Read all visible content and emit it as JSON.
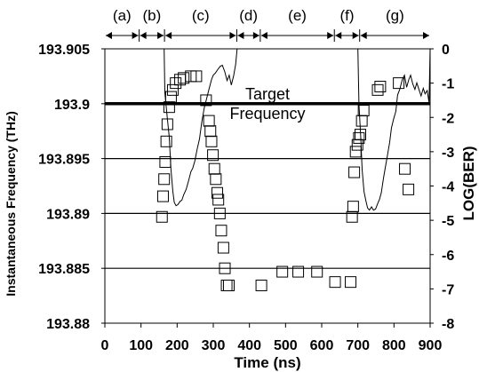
{
  "chart_data": {
    "type": "scatter",
    "xlabel": "Time (ns)",
    "ylabel_left": "Instantaneous Frequency (THz)",
    "ylabel_right": "LOG(BER)",
    "xlim": [
      0,
      900
    ],
    "ylim_left": [
      193.88,
      193.905
    ],
    "ylim_right": [
      -8,
      0
    ],
    "x_ticks": [
      "0",
      "100",
      "200",
      "300",
      "400",
      "500",
      "600",
      "700",
      "800",
      "900"
    ],
    "y_left_ticks": [
      "193.88",
      "193.885",
      "193.89",
      "193.895",
      "193.9",
      "193.905"
    ],
    "y_right_ticks": [
      "-8",
      "-7",
      "-6",
      "-5",
      "-4",
      "-3",
      "-2",
      "-1",
      "0"
    ],
    "gridlines_left": [
      193.885,
      193.89,
      193.895
    ],
    "target": {
      "value": 193.9,
      "label_line1": "Target",
      "label_line2": "Frequency"
    },
    "phases": [
      {
        "label": "(a)",
        "start": 0,
        "end": 95
      },
      {
        "label": "(b)",
        "start": 95,
        "end": 165
      },
      {
        "label": "(c)",
        "start": 165,
        "end": 365
      },
      {
        "label": "(d)",
        "start": 365,
        "end": 430
      },
      {
        "label": "(e)",
        "start": 430,
        "end": 635
      },
      {
        "label": "(f)",
        "start": 635,
        "end": 705
      },
      {
        "label": "(g)",
        "start": 705,
        "end": 900
      }
    ],
    "series": [
      {
        "axis": "left",
        "style": "line",
        "points": [
          [
            164,
            193.905
          ],
          [
            166,
            193.901
          ],
          [
            172,
            193.899
          ],
          [
            178,
            193.897
          ],
          [
            183,
            193.894
          ],
          [
            188,
            193.892
          ],
          [
            192,
            193.891
          ],
          [
            197,
            193.8907
          ],
          [
            202,
            193.8908
          ],
          [
            208,
            193.8911
          ],
          [
            213,
            193.8912
          ],
          [
            218,
            193.8917
          ],
          [
            225,
            193.8922
          ],
          [
            232,
            193.893
          ],
          [
            238,
            193.8938
          ],
          [
            243,
            193.8941
          ],
          [
            249,
            193.8948
          ],
          [
            255,
            193.8958
          ],
          [
            262,
            193.8968
          ],
          [
            268,
            193.8983
          ],
          [
            275,
            193.8996
          ],
          [
            281,
            193.9004
          ],
          [
            288,
            193.9013
          ],
          [
            295,
            193.9022
          ],
          [
            300,
            193.9026
          ],
          [
            306,
            193.9028
          ],
          [
            312,
            193.9031
          ],
          [
            319,
            193.9034
          ],
          [
            325,
            193.9035
          ],
          [
            332,
            193.9029
          ],
          [
            338,
            193.9021
          ],
          [
            344,
            193.9026
          ],
          [
            350,
            193.9017
          ],
          [
            356,
            193.9025
          ],
          [
            362,
            193.9036
          ],
          [
            366,
            193.905
          ]
        ]
      },
      {
        "axis": "left",
        "style": "line",
        "points": [
          [
            700,
            193.905
          ],
          [
            703,
            193.9
          ],
          [
            708,
            193.897
          ],
          [
            712,
            193.894
          ],
          [
            717,
            193.892
          ],
          [
            722,
            193.8912
          ],
          [
            727,
            193.8905
          ],
          [
            732,
            193.8903
          ],
          [
            738,
            193.8906
          ],
          [
            743,
            193.8903
          ],
          [
            749,
            193.8904
          ],
          [
            755,
            193.8909
          ],
          [
            760,
            193.8913
          ],
          [
            765,
            193.8919
          ],
          [
            771,
            193.8932
          ],
          [
            776,
            193.8942
          ],
          [
            782,
            193.8953
          ],
          [
            788,
            193.8965
          ],
          [
            793,
            193.8978
          ],
          [
            799,
            193.8986
          ],
          [
            805,
            193.8993
          ],
          [
            810,
            193.9008
          ],
          [
            816,
            193.9013
          ],
          [
            823,
            193.9022
          ],
          [
            829,
            193.9026
          ],
          [
            835,
            193.9015
          ],
          [
            841,
            193.9022
          ],
          [
            846,
            193.9026
          ],
          [
            852,
            193.9018
          ],
          [
            858,
            193.9013
          ],
          [
            863,
            193.9019
          ],
          [
            869,
            193.9013
          ],
          [
            875,
            193.9007
          ],
          [
            881,
            193.9014
          ],
          [
            886,
            193.9009
          ],
          [
            892,
            193.9012
          ],
          [
            897,
            193.9001
          ],
          [
            900,
            193.905
          ]
        ]
      },
      {
        "axis": "right",
        "style": "marker",
        "points": [
          [
            158,
            -4.9
          ],
          [
            161,
            -4.3
          ],
          [
            164,
            -3.8
          ],
          [
            167,
            -3.3
          ],
          [
            170,
            -2.7
          ],
          [
            173,
            -2.2
          ],
          [
            178,
            -1.7
          ],
          [
            183,
            -1.4
          ],
          [
            188,
            -1.2
          ],
          [
            196,
            -1.0
          ],
          [
            208,
            -0.9
          ],
          [
            218,
            -0.85
          ],
          [
            238,
            -0.8
          ],
          [
            253,
            -0.8
          ],
          [
            280,
            -1.5
          ],
          [
            288,
            -2.1
          ],
          [
            292,
            -2.4
          ],
          [
            295,
            -2.7
          ],
          [
            299,
            -3.1
          ],
          [
            303,
            -3.5
          ],
          [
            307,
            -3.8
          ],
          [
            311,
            -4.2
          ],
          [
            314,
            -4.4
          ],
          [
            318,
            -4.8
          ],
          [
            322,
            -5.3
          ],
          [
            328,
            -5.8
          ],
          [
            332,
            -6.4
          ],
          [
            337,
            -6.9
          ],
          [
            343,
            -6.9
          ],
          [
            433,
            -6.9
          ],
          [
            491,
            -6.5
          ],
          [
            535,
            -6.5
          ],
          [
            587,
            -6.5
          ],
          [
            637,
            -6.8
          ],
          [
            680,
            -6.8
          ],
          [
            684,
            -4.9
          ],
          [
            687,
            -4.6
          ],
          [
            690,
            -3.6
          ],
          [
            694,
            -3.0
          ],
          [
            699,
            -2.8
          ],
          [
            703,
            -2.6
          ],
          [
            707,
            -2.5
          ],
          [
            711,
            -2.1
          ],
          [
            716,
            -1.8
          ],
          [
            755,
            -1.2
          ],
          [
            762,
            -1.1
          ],
          [
            813,
            -1.0
          ],
          [
            830,
            -3.5
          ],
          [
            840,
            -4.1
          ]
        ]
      }
    ]
  }
}
